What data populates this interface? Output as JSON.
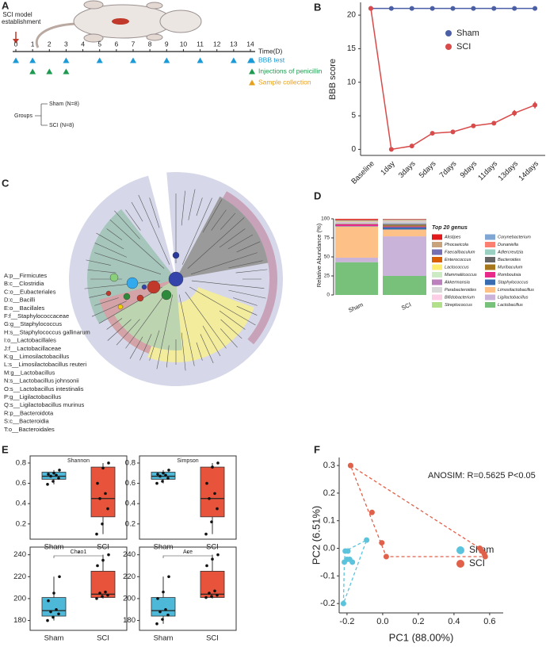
{
  "panels": {
    "A": {
      "panel": "A",
      "event_label": "SCI model establishment",
      "days": [
        0,
        1,
        2,
        3,
        4,
        5,
        6,
        7,
        8,
        9,
        10,
        11,
        12,
        13,
        14
      ],
      "axis_label": "Time(D)",
      "legend": [
        {
          "name": "BBB test",
          "color": "#1a9ad6",
          "days": [
            0,
            1,
            3,
            5,
            7,
            9,
            11,
            13,
            14
          ]
        },
        {
          "name": "Injections of penicillin",
          "color": "#1e9a50",
          "days": [
            1,
            2,
            3
          ]
        },
        {
          "name": "Sample collection",
          "color": "#e6a020"
        }
      ],
      "groups_label": "Groups",
      "groups": [
        "Sham (N=8)",
        "SCI (N=8)"
      ]
    },
    "C": {
      "panel": "C",
      "legend": [
        "A:p__Firmicutes",
        "B:c__Clostridia",
        "C:o__Eubacteriales",
        "D:c__Bacilli",
        "E:o__Bacillales",
        "F:f__Staphylococcaceae",
        "G:g__Staphylococcus",
        "H:s__Staphylococcus gallinarum",
        "I:o__Lactobacillales",
        "J:f__Lactobacillaceae",
        "K:g__Limosilactobacillus",
        "L:s__Limosilactobacillus reuteri",
        "M:g__Lactobacillus",
        "N:s__Lactobacillus johnsonii",
        "O:s__Lactobacillus intestinalis",
        "P:g__Ligilactobacillus",
        "Q:s__Ligilactobacillus murinus",
        "R:p__Bacteroidota",
        "S:c__Bacteroidia",
        "T:o__Bacteroidales"
      ]
    }
  },
  "chart_data": [
    {
      "panel": "B",
      "type": "line",
      "categories": [
        "Baseline",
        "1day",
        "3days",
        "5days",
        "7days",
        "9days",
        "11days",
        "13days",
        "14days"
      ],
      "ylabel": "BBB score",
      "ylim": [
        -0.9,
        21.9
      ],
      "yticks": [
        0,
        5,
        10,
        15,
        20
      ],
      "series": [
        {
          "name": "Sham",
          "color": "#4a5fa6",
          "values": [
            21,
            21,
            21,
            21,
            21,
            21,
            21,
            21,
            21
          ]
        },
        {
          "name": "SCI",
          "color": "#d94a4a",
          "values": [
            21,
            0,
            0.5,
            2.4,
            2.6,
            3.5,
            3.9,
            5.4,
            6.6
          ],
          "errors": [
            0,
            0.1,
            0.2,
            0.2,
            0.2,
            0.25,
            0.3,
            0.45,
            0.5
          ]
        }
      ]
    },
    {
      "panel": "D",
      "type": "stacked_bar",
      "categories": [
        "Sham",
        "SCI"
      ],
      "ylabel": "Relative Abundance (%)",
      "ylim": [
        0,
        100
      ],
      "yticks": [
        0,
        25,
        50,
        75,
        100
      ],
      "legend_title": "Top 20 genus",
      "series": [
        {
          "name": "Lactobacillus",
          "color": "#77c17a",
          "values": [
            43,
            25
          ]
        },
        {
          "name": "Ligilactobacillus",
          "color": "#c9b3d9",
          "values": [
            6,
            52
          ]
        },
        {
          "name": "Limosilactobacillus",
          "color": "#fdc086",
          "values": [
            41,
            9
          ]
        },
        {
          "name": "Staphylococcus",
          "color": "#386cb0",
          "values": [
            0.5,
            3
          ]
        },
        {
          "name": "Romboutsia",
          "color": "#e7298a",
          "values": [
            2.5,
            1
          ]
        },
        {
          "name": "Muribaculum",
          "color": "#a6761d",
          "values": [
            0.3,
            1.5
          ]
        },
        {
          "name": "Bacteroides",
          "color": "#666666",
          "values": [
            0.3,
            1.5
          ]
        },
        {
          "name": "Adlercreutzia",
          "color": "#9ad0c2",
          "values": [
            0.2,
            0.5
          ]
        },
        {
          "name": "Dunaniella",
          "color": "#fb8072",
          "values": [
            0.2,
            0.5
          ]
        },
        {
          "name": "Corynebacterium",
          "color": "#80a6d3",
          "values": [
            0.3,
            1
          ]
        },
        {
          "name": "Streptococcus",
          "color": "#b2df8a",
          "values": [
            0.3,
            0.5
          ]
        },
        {
          "name": "Bifidobacterium",
          "color": "#fccde5",
          "values": [
            0.5,
            0.5
          ]
        },
        {
          "name": "Parabacteroides",
          "color": "#d9d9d9",
          "values": [
            0.3,
            0.5
          ]
        },
        {
          "name": "Akkermansia",
          "color": "#bc80bd",
          "values": [
            0.5,
            0.5
          ]
        },
        {
          "name": "Mammaliicoccus",
          "color": "#ccebc5",
          "values": [
            0.6,
            0.5
          ]
        },
        {
          "name": "Lactococcus",
          "color": "#ffed6f",
          "values": [
            0.3,
            0.3
          ]
        },
        {
          "name": "Enterococcus",
          "color": "#d95f02",
          "values": [
            0.5,
            0.3
          ]
        },
        {
          "name": "Faecalibaculum",
          "color": "#7570b3",
          "values": [
            0.5,
            0.5
          ]
        },
        {
          "name": "Phocaeicola",
          "color": "#c8a27a",
          "values": [
            1,
            1
          ]
        },
        {
          "name": "Alistipes",
          "color": "#e31a1c",
          "values": [
            1.2,
            0.4
          ]
        }
      ]
    },
    {
      "panel": "E",
      "type": "box",
      "title": "Shannon",
      "categories": [
        "Sham",
        "SCI"
      ],
      "colors": [
        "#4db8d8",
        "#e8533c"
      ],
      "ylim": [
        0.05,
        0.87
      ],
      "yticks": [
        0.2,
        0.4,
        0.6,
        0.8
      ],
      "boxes": [
        {
          "min": 0.59,
          "q1": 0.64,
          "median": 0.67,
          "q3": 0.71,
          "max": 0.73,
          "points": [
            0.59,
            0.62,
            0.65,
            0.67,
            0.68,
            0.69,
            0.7,
            0.73
          ]
        },
        {
          "min": 0.1,
          "q1": 0.27,
          "median": 0.45,
          "q3": 0.76,
          "max": 0.8,
          "points": [
            0.1,
            0.2,
            0.35,
            0.45,
            0.5,
            0.6,
            0.75,
            0.8
          ]
        }
      ]
    },
    {
      "type": "box",
      "title": "Simpson",
      "categories": [
        "Sham",
        "SCI"
      ],
      "colors": [
        "#4db8d8",
        "#e8533c"
      ],
      "ylim": [
        0.05,
        0.87
      ],
      "yticks": [
        0.2,
        0.4,
        0.6,
        0.8
      ],
      "boxes": [
        {
          "min": 0.6,
          "q1": 0.64,
          "median": 0.67,
          "q3": 0.71,
          "max": 0.73,
          "points": [
            0.6,
            0.62,
            0.65,
            0.67,
            0.68,
            0.69,
            0.7,
            0.73
          ]
        },
        {
          "min": 0.1,
          "q1": 0.27,
          "median": 0.45,
          "q3": 0.76,
          "max": 0.8,
          "points": [
            0.1,
            0.22,
            0.35,
            0.45,
            0.5,
            0.6,
            0.76,
            0.8
          ]
        }
      ]
    },
    {
      "type": "box",
      "title": "Chao1",
      "annotation": "*",
      "categories": [
        "Sham",
        "SCI"
      ],
      "colors": [
        "#4db8d8",
        "#e8533c"
      ],
      "ylim": [
        171,
        247
      ],
      "yticks": [
        180,
        200,
        220,
        240
      ],
      "boxes": [
        {
          "min": 180,
          "q1": 184,
          "median": 189,
          "q3": 201,
          "max": 220,
          "points": [
            180,
            183,
            186,
            188,
            190,
            198,
            205,
            220
          ]
        },
        {
          "min": 200,
          "q1": 201,
          "median": 204,
          "q3": 225,
          "max": 240,
          "points": [
            200,
            202,
            203,
            205,
            206,
            230,
            235,
            240
          ]
        }
      ]
    },
    {
      "type": "box",
      "title": "Ace",
      "annotation": "*",
      "categories": [
        "Sham",
        "SCI"
      ],
      "colors": [
        "#4db8d8",
        "#e8533c"
      ],
      "ylim": [
        171,
        247
      ],
      "yticks": [
        180,
        200,
        220,
        240
      ],
      "boxes": [
        {
          "min": 177,
          "q1": 184,
          "median": 189,
          "q3": 201,
          "max": 220,
          "points": [
            177,
            181,
            185,
            188,
            190,
            200,
            206,
            220
          ]
        },
        {
          "min": 200,
          "q1": 201,
          "median": 204,
          "q3": 225,
          "max": 240,
          "points": [
            201,
            202,
            203,
            205,
            207,
            230,
            236,
            240
          ]
        }
      ]
    },
    {
      "panel": "F",
      "type": "scatter",
      "xlabel": "PC1 (88.00%)",
      "ylabel": "PC2 (6.51%)",
      "annotation": "ANOSIM: R=0.5625  P<0.05",
      "xlim": [
        -0.244,
        0.676
      ],
      "ylim": [
        -0.234,
        0.329
      ],
      "xticks": [
        -0.2,
        {
          "value": 0,
          "label": "0.0"
        },
        0.2,
        0.4,
        0.6
      ],
      "yticks": [
        -0.2,
        -0.1,
        {
          "value": 0,
          "label": "0.0"
        },
        0.1,
        0.2,
        0.3
      ],
      "series": [
        {
          "name": "Sham",
          "color": "#5bc3dc",
          "x": [
            -0.22,
            -0.215,
            -0.2,
            -0.185,
            -0.17,
            -0.21,
            -0.195,
            -0.09
          ],
          "y": [
            -0.2,
            -0.05,
            -0.04,
            -0.04,
            -0.05,
            -0.01,
            -0.01,
            0.03
          ]
        },
        {
          "name": "SCI",
          "color": "#e0604a",
          "x": [
            -0.18,
            -0.06,
            -0.005,
            0.02,
            0.545,
            0.555,
            0.57,
            0.575
          ],
          "y": [
            0.3,
            0.13,
            0.02,
            -0.03,
            0,
            -0.01,
            -0.02,
            -0.03
          ]
        }
      ]
    }
  ]
}
